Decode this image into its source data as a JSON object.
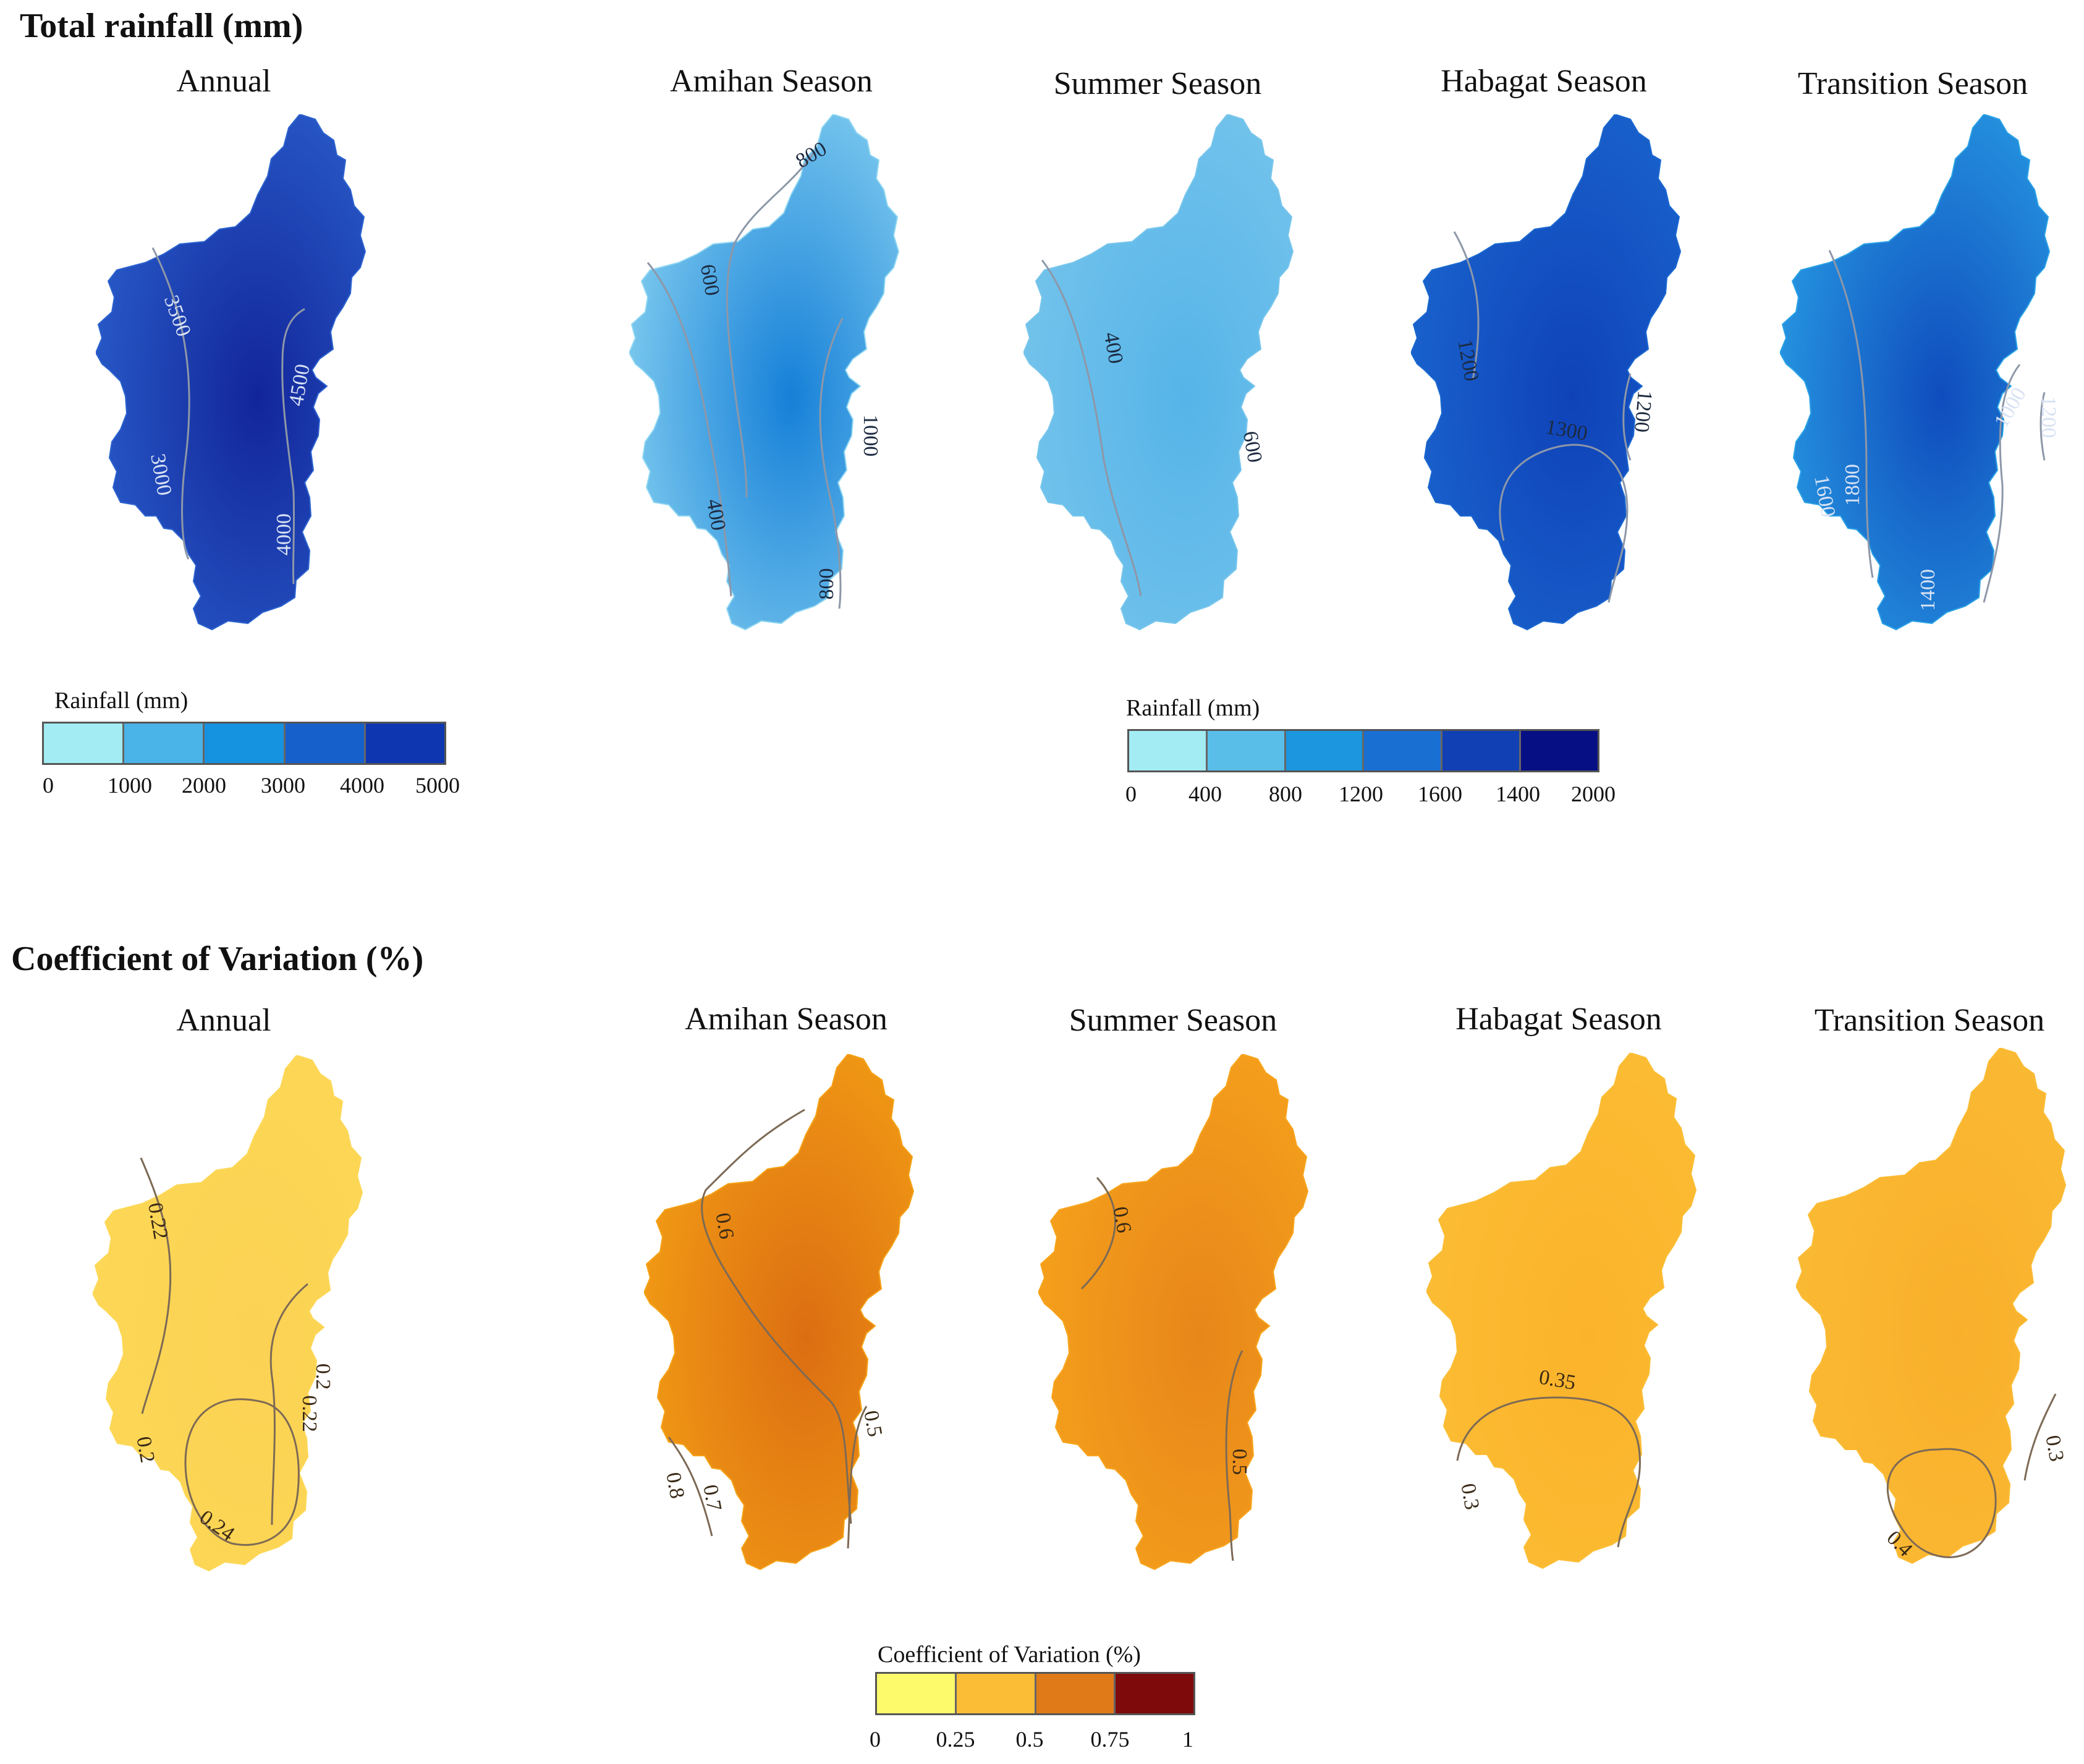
{
  "rainfall": {
    "section_title": "Total rainfall (mm)",
    "panels": [
      {
        "title": "Annual",
        "color_center": "#12259a",
        "color_edge": "#2c63cf",
        "contours": [
          "3500",
          "3000",
          "4500",
          "4000"
        ]
      },
      {
        "title": "Amihan Season",
        "color_center": "#1680d8",
        "color_edge": "#8ed6f2",
        "contours": [
          "800",
          "600",
          "400",
          "1000",
          "800"
        ]
      },
      {
        "title": "Summer Season",
        "color_center": "#56b4e8",
        "color_edge": "#78c6ec",
        "contours": [
          "400",
          "600"
        ]
      },
      {
        "title": "Habagat Season",
        "color_center": "#0f42b8",
        "color_edge": "#1b68d0",
        "contours": [
          "1200",
          "1300",
          "1200"
        ]
      },
      {
        "title": "Transition Season",
        "color_center": "#0f4cbd",
        "color_edge": "#2aa2e6",
        "contours": [
          "1600",
          "1800",
          "1000",
          "1200",
          "1400"
        ]
      }
    ],
    "legend_annual": {
      "title": "Rainfall (mm)",
      "colors": [
        "#a3ecf3",
        "#4ab3e8",
        "#1592e0",
        "#1660cc",
        "#0d36b0",
        "#070f85"
      ],
      "ticks": [
        "0",
        "1000",
        "2000",
        "3000",
        "4000",
        "5000"
      ]
    },
    "legend_seasonal": {
      "title": "Rainfall (mm)",
      "colors": [
        "#a3ecf3",
        "#59bfe9",
        "#1b96df",
        "#1a6fd3",
        "#1040b4",
        "#070f85"
      ],
      "ticks": [
        "0",
        "400",
        "800",
        "1200",
        "1600",
        "1400",
        "2000"
      ]
    }
  },
  "cv": {
    "section_title": "Coefficient of Variation (%)",
    "panels": [
      {
        "title": "Annual",
        "color_center": "#fcd254",
        "color_edge": "#fdd856",
        "contours": [
          "0.22",
          "0.2",
          "0.22",
          "0.2",
          "0.24"
        ]
      },
      {
        "title": "Amihan Season",
        "color_center": "#dc6e12",
        "color_edge": "#f5a215",
        "contours": [
          "0.6",
          "0.5",
          "0.7",
          "0.8"
        ]
      },
      {
        "title": "Summer Season",
        "color_center": "#e7861a",
        "color_edge": "#f8a51c",
        "contours": [
          "0.6",
          "0.5"
        ]
      },
      {
        "title": "Habagat Season",
        "color_center": "#fbb32b",
        "color_edge": "#fbbe35",
        "contours": [
          "0.35",
          "0.3"
        ]
      },
      {
        "title": "Transition Season",
        "color_center": "#f9af2b",
        "color_edge": "#fbbc35",
        "contours": [
          "0.3",
          "0.4"
        ]
      }
    ],
    "legend": {
      "title": "Coefficient of Variation (%)",
      "colors": [
        "#fdfa6c",
        "#fbbd35",
        "#e07a18",
        "#7f0a0c"
      ],
      "ticks": [
        "0",
        "0.25",
        "0.5",
        "0.75",
        "1"
      ]
    }
  }
}
